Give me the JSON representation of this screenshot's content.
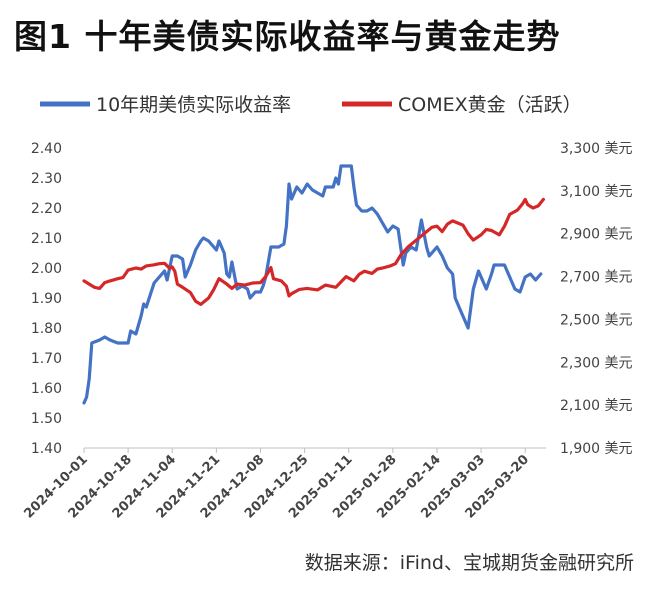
{
  "title": "图1  十年美债实际收益率与黄金走势",
  "source": "数据来源：iFind、宝城期货金融研究所",
  "chart_data": {
    "type": "line",
    "title": "",
    "legend_position": "top",
    "grid": false,
    "x_ticks": [
      "2024-10-01",
      "2024-10-18",
      "2024-11-04",
      "2024-11-21",
      "2024-12-08",
      "2024-12-25",
      "2025-01-11",
      "2025-01-28",
      "2025-02-14",
      "2025-03-03",
      "2025-03-20"
    ],
    "x_range": [
      "2024-10-01",
      "2025-03-28"
    ],
    "y_left": {
      "range": [
        1.4,
        2.4
      ],
      "ticks": [
        "1.40",
        "1.50",
        "1.60",
        "1.70",
        "1.80",
        "1.90",
        "2.00",
        "2.10",
        "2.20",
        "2.30",
        "2.40"
      ]
    },
    "y_right": {
      "range": [
        1900,
        3300
      ],
      "ticks": [
        "1,900 美元",
        "2,100 美元",
        "2,300 美元",
        "2,500 美元",
        "2,700 美元",
        "2,900 美元",
        "3,100 美元",
        "3,300 美元"
      ]
    },
    "series": [
      {
        "name": "10年期美债实际收益率",
        "axis": "left",
        "color": "#4472C4",
        "points": [
          [
            "2024-10-01",
            1.55
          ],
          [
            "2024-10-02",
            1.57
          ],
          [
            "2024-10-03",
            1.63
          ],
          [
            "2024-10-04",
            1.75
          ],
          [
            "2024-10-07",
            1.76
          ],
          [
            "2024-10-09",
            1.77
          ],
          [
            "2024-10-11",
            1.76
          ],
          [
            "2024-10-14",
            1.75
          ],
          [
            "2024-10-16",
            1.75
          ],
          [
            "2024-10-18",
            1.75
          ],
          [
            "2024-10-19",
            1.79
          ],
          [
            "2024-10-21",
            1.78
          ],
          [
            "2024-10-23",
            1.84
          ],
          [
            "2024-10-24",
            1.88
          ],
          [
            "2024-10-25",
            1.87
          ],
          [
            "2024-10-28",
            1.95
          ],
          [
            "2024-10-29",
            1.96
          ],
          [
            "2024-10-31",
            1.98
          ],
          [
            "2024-11-01",
            1.99
          ],
          [
            "2024-11-02",
            1.96
          ],
          [
            "2024-11-04",
            2.04
          ],
          [
            "2024-11-06",
            2.04
          ],
          [
            "2024-11-08",
            2.03
          ],
          [
            "2024-11-09",
            1.97
          ],
          [
            "2024-11-11",
            2.01
          ],
          [
            "2024-11-13",
            2.06
          ],
          [
            "2024-11-15",
            2.09
          ],
          [
            "2024-11-16",
            2.1
          ],
          [
            "2024-11-18",
            2.09
          ],
          [
            "2024-11-20",
            2.07
          ],
          [
            "2024-11-21",
            2.06
          ],
          [
            "2024-11-22",
            2.09
          ],
          [
            "2024-11-24",
            2.05
          ],
          [
            "2024-11-25",
            1.98
          ],
          [
            "2024-11-26",
            1.97
          ],
          [
            "2024-11-27",
            2.02
          ],
          [
            "2024-11-29",
            1.93
          ],
          [
            "2024-12-01",
            1.94
          ],
          [
            "2024-12-03",
            1.93
          ],
          [
            "2024-12-04",
            1.9
          ],
          [
            "2024-12-06",
            1.92
          ],
          [
            "2024-12-08",
            1.92
          ],
          [
            "2024-12-09",
            1.94
          ],
          [
            "2024-12-10",
            1.97
          ],
          [
            "2024-12-12",
            2.07
          ],
          [
            "2024-12-15",
            2.07
          ],
          [
            "2024-12-17",
            2.08
          ],
          [
            "2024-12-18",
            2.14
          ],
          [
            "2024-12-19",
            2.28
          ],
          [
            "2024-12-20",
            2.23
          ],
          [
            "2024-12-22",
            2.27
          ],
          [
            "2024-12-24",
            2.25
          ],
          [
            "2024-12-26",
            2.28
          ],
          [
            "2024-12-28",
            2.26
          ],
          [
            "2024-12-30",
            2.25
          ],
          [
            "2025-01-01",
            2.24
          ],
          [
            "2025-01-02",
            2.27
          ],
          [
            "2025-01-05",
            2.27
          ],
          [
            "2025-01-06",
            2.3
          ],
          [
            "2025-01-07",
            2.28
          ],
          [
            "2025-01-08",
            2.34
          ],
          [
            "2025-01-10",
            2.34
          ],
          [
            "2025-01-12",
            2.34
          ],
          [
            "2025-01-13",
            2.27
          ],
          [
            "2025-01-14",
            2.21
          ],
          [
            "2025-01-16",
            2.19
          ],
          [
            "2025-01-18",
            2.19
          ],
          [
            "2025-01-20",
            2.2
          ],
          [
            "2025-01-22",
            2.18
          ],
          [
            "2025-01-24",
            2.15
          ],
          [
            "2025-01-26",
            2.12
          ],
          [
            "2025-01-28",
            2.14
          ],
          [
            "2025-01-30",
            2.13
          ],
          [
            "2025-02-01",
            2.01
          ],
          [
            "2025-02-02",
            2.05
          ],
          [
            "2025-02-04",
            2.07
          ],
          [
            "2025-02-06",
            2.06
          ],
          [
            "2025-02-08",
            2.16
          ],
          [
            "2025-02-10",
            2.07
          ],
          [
            "2025-02-11",
            2.04
          ],
          [
            "2025-02-14",
            2.07
          ],
          [
            "2025-02-16",
            2.04
          ],
          [
            "2025-02-18",
            2.0
          ],
          [
            "2025-02-20",
            1.98
          ],
          [
            "2025-02-21",
            1.9
          ],
          [
            "2025-02-23",
            1.86
          ],
          [
            "2025-02-25",
            1.82
          ],
          [
            "2025-02-26",
            1.8
          ],
          [
            "2025-02-28",
            1.93
          ],
          [
            "2025-03-02",
            1.99
          ],
          [
            "2025-03-03",
            1.97
          ],
          [
            "2025-03-05",
            1.93
          ],
          [
            "2025-03-07",
            1.98
          ],
          [
            "2025-03-08",
            2.01
          ],
          [
            "2025-03-10",
            2.01
          ],
          [
            "2025-03-12",
            2.01
          ],
          [
            "2025-03-14",
            1.97
          ],
          [
            "2025-03-16",
            1.93
          ],
          [
            "2025-03-18",
            1.92
          ],
          [
            "2025-03-20",
            1.97
          ],
          [
            "2025-03-22",
            1.98
          ],
          [
            "2025-03-24",
            1.96
          ],
          [
            "2025-03-26",
            1.98
          ]
        ]
      },
      {
        "name": "COMEX黄金（活跃）",
        "axis": "right",
        "color": "#D62728",
        "points": [
          [
            "2024-10-01",
            2680
          ],
          [
            "2024-10-03",
            2665
          ],
          [
            "2024-10-05",
            2650
          ],
          [
            "2024-10-07",
            2645
          ],
          [
            "2024-10-09",
            2672
          ],
          [
            "2024-10-11",
            2680
          ],
          [
            "2024-10-14",
            2690
          ],
          [
            "2024-10-16",
            2695
          ],
          [
            "2024-10-18",
            2730
          ],
          [
            "2024-10-21",
            2740
          ],
          [
            "2024-10-23",
            2735
          ],
          [
            "2024-10-25",
            2750
          ],
          [
            "2024-10-28",
            2755
          ],
          [
            "2024-10-30",
            2760
          ],
          [
            "2024-11-01",
            2762
          ],
          [
            "2024-11-03",
            2738
          ],
          [
            "2024-11-04",
            2745
          ],
          [
            "2024-11-05",
            2725
          ],
          [
            "2024-11-06",
            2665
          ],
          [
            "2024-11-08",
            2650
          ],
          [
            "2024-11-11",
            2625
          ],
          [
            "2024-11-13",
            2585
          ],
          [
            "2024-11-15",
            2570
          ],
          [
            "2024-11-18",
            2600
          ],
          [
            "2024-11-20",
            2640
          ],
          [
            "2024-11-22",
            2690
          ],
          [
            "2024-11-25",
            2665
          ],
          [
            "2024-11-27",
            2645
          ],
          [
            "2024-11-29",
            2665
          ],
          [
            "2024-12-02",
            2660
          ],
          [
            "2024-12-05",
            2670
          ],
          [
            "2024-12-08",
            2672
          ],
          [
            "2024-12-10",
            2700
          ],
          [
            "2024-12-12",
            2742
          ],
          [
            "2024-12-13",
            2690
          ],
          [
            "2024-12-16",
            2680
          ],
          [
            "2024-12-18",
            2655
          ],
          [
            "2024-12-19",
            2610
          ],
          [
            "2024-12-20",
            2620
          ],
          [
            "2024-12-23",
            2640
          ],
          [
            "2024-12-26",
            2645
          ],
          [
            "2024-12-30",
            2638
          ],
          [
            "2025-01-02",
            2660
          ],
          [
            "2025-01-06",
            2650
          ],
          [
            "2025-01-08",
            2675
          ],
          [
            "2025-01-10",
            2700
          ],
          [
            "2025-01-13",
            2680
          ],
          [
            "2025-01-15",
            2710
          ],
          [
            "2025-01-17",
            2725
          ],
          [
            "2025-01-20",
            2715
          ],
          [
            "2025-01-22",
            2735
          ],
          [
            "2025-01-24",
            2740
          ],
          [
            "2025-01-27",
            2750
          ],
          [
            "2025-01-29",
            2760
          ],
          [
            "2025-01-31",
            2800
          ],
          [
            "2025-02-03",
            2840
          ],
          [
            "2025-02-05",
            2860
          ],
          [
            "2025-02-07",
            2880
          ],
          [
            "2025-02-10",
            2910
          ],
          [
            "2025-02-12",
            2930
          ],
          [
            "2025-02-14",
            2935
          ],
          [
            "2025-02-16",
            2910
          ],
          [
            "2025-02-18",
            2945
          ],
          [
            "2025-02-20",
            2960
          ],
          [
            "2025-02-22",
            2950
          ],
          [
            "2025-02-24",
            2940
          ],
          [
            "2025-02-26",
            2900
          ],
          [
            "2025-02-28",
            2870
          ],
          [
            "2025-03-03",
            2895
          ],
          [
            "2025-03-05",
            2920
          ],
          [
            "2025-03-07",
            2915
          ],
          [
            "2025-03-10",
            2895
          ],
          [
            "2025-03-12",
            2935
          ],
          [
            "2025-03-14",
            2990
          ],
          [
            "2025-03-17",
            3010
          ],
          [
            "2025-03-19",
            3040
          ],
          [
            "2025-03-20",
            3060
          ],
          [
            "2025-03-21",
            3035
          ],
          [
            "2025-03-23",
            3020
          ],
          [
            "2025-03-25",
            3030
          ],
          [
            "2025-03-27",
            3060
          ]
        ]
      }
    ]
  }
}
